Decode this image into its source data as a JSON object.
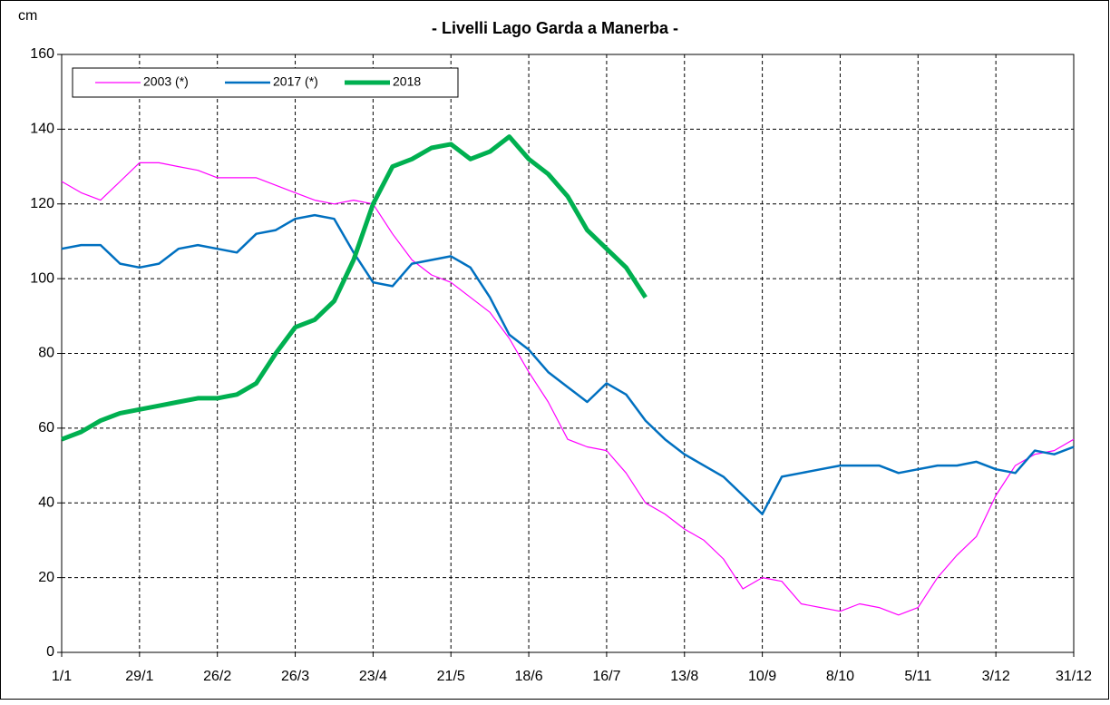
{
  "chart_data": {
    "type": "line",
    "title": "- Livelli Lago Garda a Manerba -",
    "y_label": "cm",
    "x": [
      0,
      7,
      14,
      21,
      28,
      35,
      42,
      49,
      56,
      63,
      70,
      77,
      84,
      91,
      98,
      105,
      112,
      119,
      126,
      133,
      140,
      147,
      154,
      161,
      168,
      175,
      182,
      189,
      196,
      203,
      210,
      217,
      224,
      231,
      238,
      245,
      252,
      259,
      266,
      273,
      280,
      287,
      294,
      301,
      308,
      315,
      322,
      329,
      336,
      343,
      350,
      357,
      364
    ],
    "series": [
      {
        "name": "2003 (*)",
        "color": "#ff00ff",
        "width": 1.2,
        "values": [
          126,
          123,
          121,
          126,
          131,
          131,
          130,
          129,
          127,
          127,
          127,
          125,
          123,
          121,
          120,
          121,
          120,
          112,
          105,
          101,
          99,
          95,
          91,
          84,
          75,
          67,
          57,
          55,
          54,
          48,
          40,
          37,
          33,
          30,
          25,
          17,
          20,
          19,
          13,
          12,
          11,
          13,
          12,
          10,
          12,
          20,
          26,
          31,
          42,
          50,
          53,
          54,
          57
        ]
      },
      {
        "name": "2017 (*)",
        "color": "#0070c0",
        "width": 2.5,
        "values": [
          108,
          109,
          109,
          104,
          103,
          104,
          108,
          109,
          108,
          107,
          112,
          113,
          116,
          117,
          116,
          107,
          99,
          98,
          104,
          105,
          106,
          103,
          95,
          85,
          81,
          75,
          71,
          67,
          72,
          69,
          62,
          57,
          53,
          50,
          47,
          42,
          37,
          47,
          48,
          49,
          50,
          50,
          50,
          48,
          49,
          50,
          50,
          51,
          49,
          48,
          54,
          53,
          55
        ]
      },
      {
        "name": "2018",
        "color": "#00b050",
        "width": 5,
        "values": [
          57,
          59,
          62,
          64,
          65,
          66,
          67,
          68,
          68,
          69,
          72,
          80,
          87,
          89,
          94,
          105,
          120,
          130,
          132,
          135,
          136,
          132,
          134,
          138,
          132,
          128,
          122,
          113,
          108,
          103,
          95,
          null,
          null,
          null,
          null,
          null,
          null,
          null,
          null,
          null,
          null,
          null,
          null,
          null,
          null,
          null,
          null,
          null,
          null,
          null,
          null,
          null,
          null
        ]
      }
    ],
    "xlim": [
      0,
      364
    ],
    "xticks": [
      {
        "value": 0,
        "label": "1/1"
      },
      {
        "value": 28,
        "label": "29/1"
      },
      {
        "value": 56,
        "label": "26/2"
      },
      {
        "value": 84,
        "label": "26/3"
      },
      {
        "value": 112,
        "label": "23/4"
      },
      {
        "value": 140,
        "label": "21/5"
      },
      {
        "value": 168,
        "label": "18/6"
      },
      {
        "value": 196,
        "label": "16/7"
      },
      {
        "value": 224,
        "label": "13/8"
      },
      {
        "value": 252,
        "label": "10/9"
      },
      {
        "value": 280,
        "label": "8/10"
      },
      {
        "value": 308,
        "label": "5/11"
      },
      {
        "value": 336,
        "label": "3/12"
      },
      {
        "value": 364,
        "label": "31/12"
      }
    ],
    "ylim": [
      0,
      160
    ],
    "yticks": [
      0,
      20,
      40,
      60,
      80,
      100,
      120,
      140,
      160
    ],
    "grid": true,
    "legend": "top-left"
  }
}
